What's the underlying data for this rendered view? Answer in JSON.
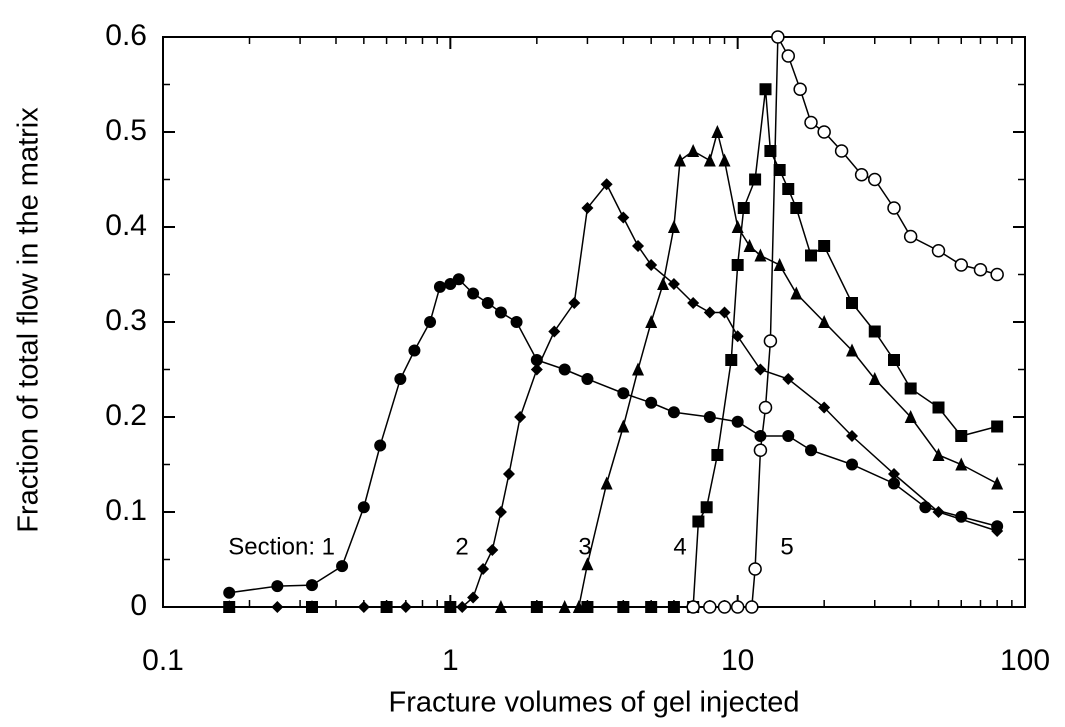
{
  "chart_data": {
    "type": "line",
    "xlabel": "Fracture volumes of gel injected",
    "ylabel": "Fraction of total flow in the matrix",
    "xscale": "log",
    "xlim": [
      0.1,
      100
    ],
    "xticks": [
      0.1,
      1,
      10,
      100
    ],
    "ylim": [
      0,
      0.6
    ],
    "yticks": [
      0,
      0.1,
      0.2,
      0.3,
      0.4,
      0.5,
      0.6
    ],
    "annotations": [
      "Section: 1",
      "2",
      "3",
      "4",
      "5"
    ],
    "series": [
      {
        "marker": "circle-filled",
        "color": "#000000",
        "x": [
          0.17,
          0.25,
          0.33,
          0.42,
          0.5,
          0.57,
          0.67,
          0.75,
          0.85,
          0.92,
          1.0,
          1.07,
          1.2,
          1.35,
          1.5,
          1.7,
          2.0,
          2.5,
          3.0,
          4.0,
          5.0,
          6.0,
          8.0,
          10,
          12,
          15,
          18,
          25,
          35,
          45,
          60,
          80
        ],
        "values": [
          0.015,
          0.022,
          0.023,
          0.043,
          0.105,
          0.17,
          0.24,
          0.27,
          0.3,
          0.337,
          0.34,
          0.345,
          0.33,
          0.32,
          0.31,
          0.3,
          0.26,
          0.25,
          0.24,
          0.225,
          0.215,
          0.205,
          0.2,
          0.195,
          0.18,
          0.18,
          0.165,
          0.15,
          0.13,
          0.105,
          0.095,
          0.085
        ]
      },
      {
        "marker": "diamond",
        "color": "#000000",
        "x": [
          0.17,
          0.25,
          0.33,
          0.5,
          0.7,
          1.0,
          1.1,
          1.2,
          1.3,
          1.4,
          1.5,
          1.6,
          1.75,
          2.0,
          2.3,
          2.7,
          3.0,
          3.5,
          4.0,
          4.5,
          5.0,
          6.0,
          7.0,
          8.0,
          9.0,
          10,
          12,
          15,
          20,
          25,
          35,
          50,
          80
        ],
        "values": [
          0,
          0,
          0,
          0,
          0,
          0,
          0,
          0.01,
          0.04,
          0.06,
          0.1,
          0.14,
          0.2,
          0.25,
          0.29,
          0.32,
          0.42,
          0.445,
          0.41,
          0.38,
          0.36,
          0.34,
          0.32,
          0.31,
          0.31,
          0.285,
          0.25,
          0.24,
          0.21,
          0.18,
          0.14,
          0.1,
          0.08
        ]
      },
      {
        "marker": "triangle",
        "color": "#000000",
        "x": [
          0.17,
          0.33,
          0.6,
          1.0,
          1.5,
          2.0,
          2.5,
          2.8,
          3.0,
          3.5,
          4.0,
          4.5,
          5.0,
          5.5,
          6.0,
          6.3,
          7.0,
          8.0,
          8.5,
          9.0,
          10,
          11,
          12,
          14,
          16,
          20,
          25,
          30,
          40,
          50,
          60,
          80
        ],
        "values": [
          0,
          0,
          0,
          0,
          0,
          0,
          0,
          0,
          0.045,
          0.13,
          0.19,
          0.25,
          0.3,
          0.34,
          0.4,
          0.47,
          0.48,
          0.47,
          0.5,
          0.47,
          0.4,
          0.38,
          0.37,
          0.36,
          0.33,
          0.3,
          0.27,
          0.24,
          0.2,
          0.16,
          0.15,
          0.13
        ]
      },
      {
        "marker": "square",
        "color": "#000000",
        "x": [
          0.17,
          0.33,
          0.6,
          1.0,
          2.0,
          3.0,
          4.0,
          5.0,
          6.0,
          7.0,
          7.3,
          7.8,
          8.5,
          9.5,
          10,
          10.5,
          11.5,
          12.5,
          13,
          14,
          15,
          16,
          18,
          20,
          25,
          30,
          35,
          40,
          50,
          60,
          80
        ],
        "values": [
          0,
          0,
          0,
          0,
          0,
          0,
          0,
          0,
          0,
          0,
          0.09,
          0.105,
          0.16,
          0.26,
          0.36,
          0.42,
          0.45,
          0.545,
          0.48,
          0.46,
          0.44,
          0.42,
          0.37,
          0.38,
          0.32,
          0.29,
          0.26,
          0.23,
          0.21,
          0.18,
          0.19
        ]
      },
      {
        "marker": "circle-open",
        "color": "#000000",
        "x": [
          7.0,
          8.0,
          9.0,
          10,
          11.2,
          11.5,
          12,
          12.5,
          13,
          13.8,
          15,
          16.5,
          18,
          20,
          23,
          27,
          30,
          35,
          40,
          50,
          60,
          70,
          80
        ],
        "values": [
          0,
          0,
          0,
          0,
          0,
          0.04,
          0.165,
          0.21,
          0.28,
          0.6,
          0.58,
          0.545,
          0.51,
          0.5,
          0.48,
          0.455,
          0.45,
          0.42,
          0.39,
          0.375,
          0.36,
          0.355,
          0.35
        ]
      }
    ]
  }
}
